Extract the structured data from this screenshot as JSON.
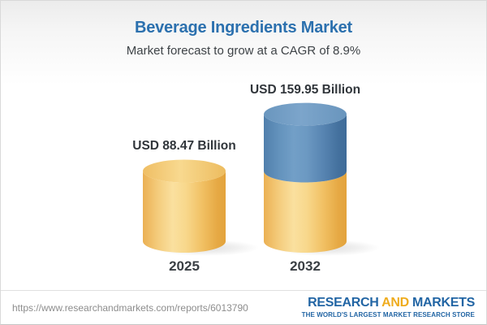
{
  "header": {
    "title": "Beverage Ingredients Market",
    "subtitle": "Market forecast to grow at a CAGR of 8.9%"
  },
  "chart_data": {
    "type": "bar",
    "style": "3d-cylinder",
    "title": "Beverage Ingredients Market",
    "subtitle": "Market forecast to grow at a CAGR of 8.9%",
    "cagr": "8.9%",
    "unit": "USD Billion",
    "categories": [
      "2025",
      "2032"
    ],
    "values": [
      88.47,
      159.95
    ],
    "value_labels": [
      "USD 88.47 Billion",
      "USD 159.95 Billion"
    ],
    "legend": "none",
    "grid": false,
    "bars": [
      {
        "year": "2025",
        "label": "USD 88.47 Billion",
        "value": 88.47,
        "segments": [
          {
            "color": "gold",
            "value": 88.47
          }
        ]
      },
      {
        "year": "2032",
        "label": "USD 159.95 Billion",
        "value": 159.95,
        "segments": [
          {
            "color": "gold",
            "value": 88.47
          },
          {
            "color": "blue",
            "value": 71.48
          }
        ]
      }
    ],
    "colors": {
      "gold": "#F2C36B",
      "blue": "#5585B2"
    }
  },
  "colors": {
    "title_blue": "#2B70AE",
    "logo_blue": "#2265A4",
    "logo_gold": "#EFAC1E",
    "label_dark": "#31363B"
  },
  "footer": {
    "url": "https://www.researchandmarkets.com/reports/6013790",
    "logo": {
      "part1": "RESEARCH",
      "part2": "AND",
      "part3": "MARKETS",
      "tagline": "THE WORLD'S LARGEST MARKET RESEARCH STORE"
    }
  }
}
